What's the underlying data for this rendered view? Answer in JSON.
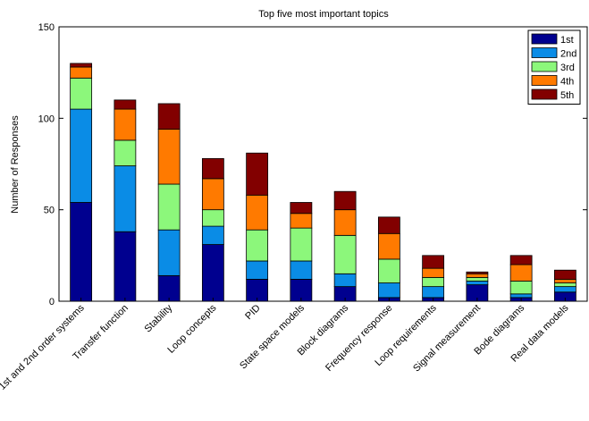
{
  "chart_data": {
    "type": "bar",
    "stacked": true,
    "title": "Top five most important topics",
    "xlabel": "",
    "ylabel": "Number of Responses",
    "ylim": [
      0,
      150
    ],
    "yticks": [
      0,
      50,
      100,
      150
    ],
    "grid": false,
    "legend_position": "top-right",
    "categories": [
      "1st and 2nd order systems",
      "Transfer function",
      "Stability",
      "Loop concepts",
      "PID",
      "State space models",
      "Block diagrams",
      "Frequency response",
      "Loop requirements",
      "Signal measurement",
      "Bode diagrams",
      "Real data models"
    ],
    "series": [
      {
        "name": "1st",
        "color": "#00008f",
        "values": [
          54,
          38,
          14,
          31,
          12,
          12,
          8,
          2,
          2,
          9,
          2,
          5
        ]
      },
      {
        "name": "2nd",
        "color": "#0a8ce6",
        "values": [
          51,
          36,
          25,
          10,
          10,
          10,
          7,
          8,
          6,
          2,
          2,
          3
        ]
      },
      {
        "name": "3rd",
        "color": "#8cf77b",
        "values": [
          17,
          14,
          25,
          9,
          17,
          18,
          21,
          13,
          5,
          2,
          7,
          2
        ]
      },
      {
        "name": "4th",
        "color": "#ff7a00",
        "values": [
          6,
          17,
          30,
          17,
          19,
          8,
          14,
          14,
          5,
          2,
          9,
          2
        ]
      },
      {
        "name": "5th",
        "color": "#820000",
        "values": [
          2,
          5,
          14,
          11,
          23,
          6,
          10,
          9,
          7,
          1,
          5,
          5
        ]
      }
    ]
  }
}
